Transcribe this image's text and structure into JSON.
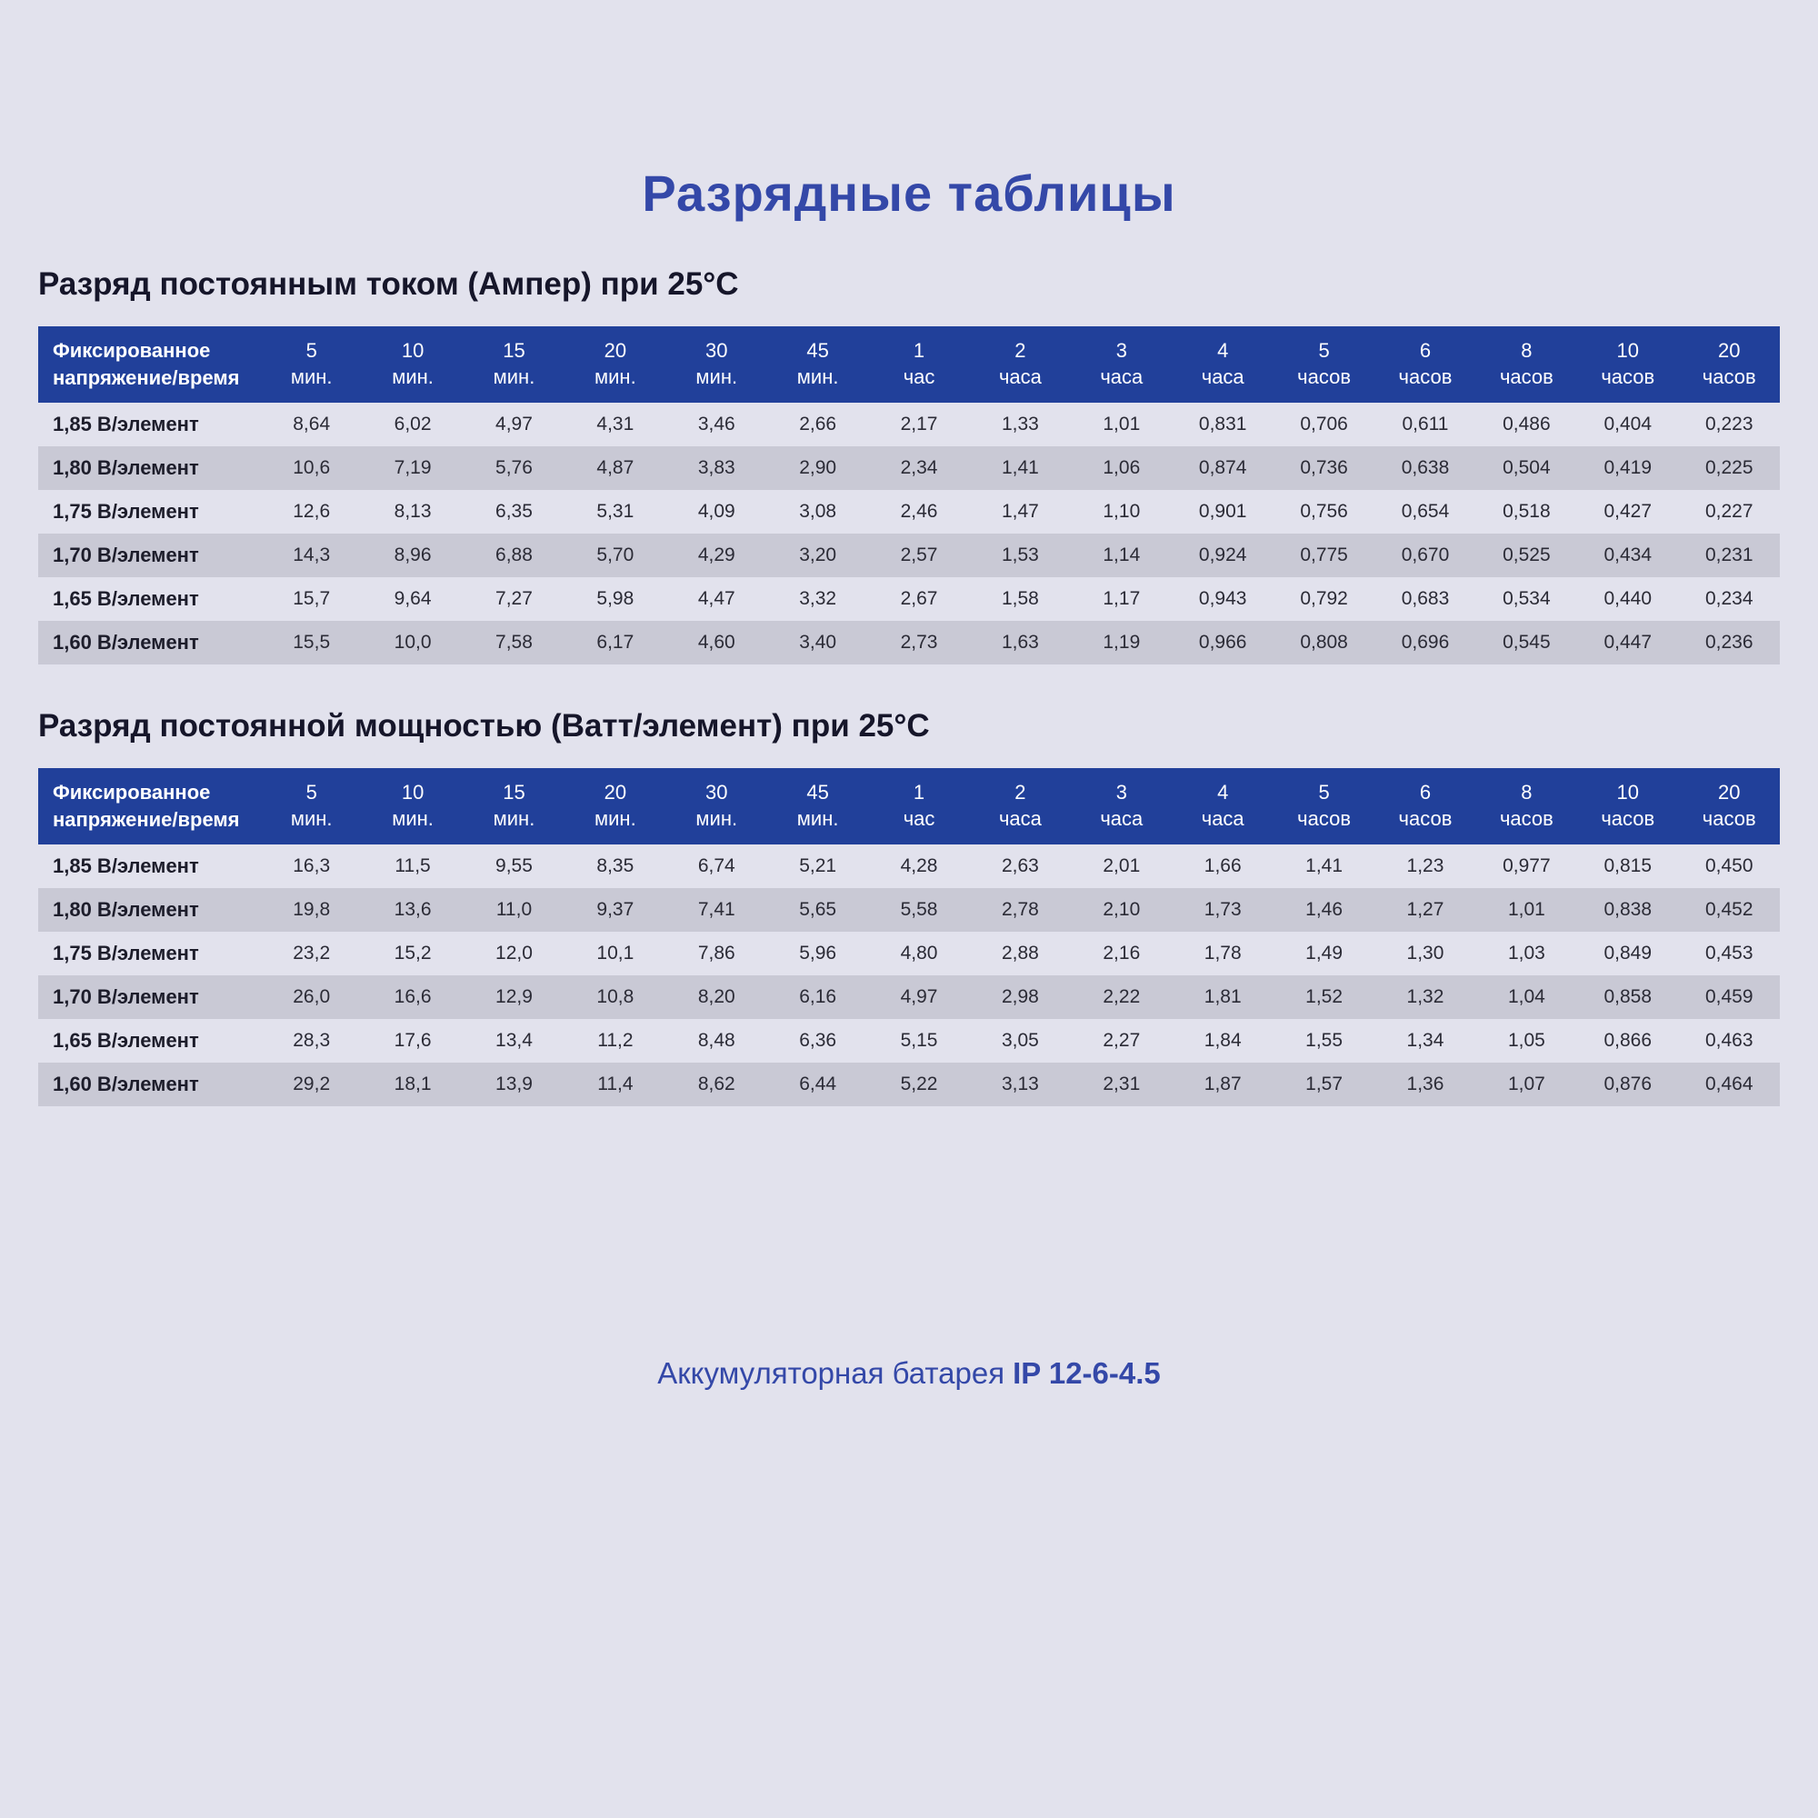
{
  "page": {
    "title": "Разрядные таблицы",
    "footer": {
      "text": "Аккумуляторная батарея",
      "model": "IP 12-6-4.5"
    }
  },
  "colors": {
    "background": "#e2e2ed",
    "accent_blue": "#3448a8",
    "header_navy": "#21409a",
    "stripe_gray": "#c9c9d5"
  },
  "corner_header": "Фиксированное напряжение/время",
  "columns": [
    {
      "value": "5",
      "unit": "мин."
    },
    {
      "value": "10",
      "unit": "мин."
    },
    {
      "value": "15",
      "unit": "мин."
    },
    {
      "value": "20",
      "unit": "мин."
    },
    {
      "value": "30",
      "unit": "мин."
    },
    {
      "value": "45",
      "unit": "мин."
    },
    {
      "value": "1",
      "unit": "час"
    },
    {
      "value": "2",
      "unit": "часа"
    },
    {
      "value": "3",
      "unit": "часа"
    },
    {
      "value": "4",
      "unit": "часа"
    },
    {
      "value": "5",
      "unit": "часов"
    },
    {
      "value": "6",
      "unit": "часов"
    },
    {
      "value": "8",
      "unit": "часов"
    },
    {
      "value": "10",
      "unit": "часов"
    },
    {
      "value": "20",
      "unit": "часов"
    }
  ],
  "tables": [
    {
      "heading": "Разряд постоянным током (Ампер) при 25°C",
      "rows": [
        {
          "label": "1,85 В/элемент",
          "values": [
            "8,64",
            "6,02",
            "4,97",
            "4,31",
            "3,46",
            "2,66",
            "2,17",
            "1,33",
            "1,01",
            "0,831",
            "0,706",
            "0,611",
            "0,486",
            "0,404",
            "0,223"
          ]
        },
        {
          "label": "1,80 В/элемент",
          "values": [
            "10,6",
            "7,19",
            "5,76",
            "4,87",
            "3,83",
            "2,90",
            "2,34",
            "1,41",
            "1,06",
            "0,874",
            "0,736",
            "0,638",
            "0,504",
            "0,419",
            "0,225"
          ]
        },
        {
          "label": "1,75 В/элемент",
          "values": [
            "12,6",
            "8,13",
            "6,35",
            "5,31",
            "4,09",
            "3,08",
            "2,46",
            "1,47",
            "1,10",
            "0,901",
            "0,756",
            "0,654",
            "0,518",
            "0,427",
            "0,227"
          ]
        },
        {
          "label": "1,70 В/элемент",
          "values": [
            "14,3",
            "8,96",
            "6,88",
            "5,70",
            "4,29",
            "3,20",
            "2,57",
            "1,53",
            "1,14",
            "0,924",
            "0,775",
            "0,670",
            "0,525",
            "0,434",
            "0,231"
          ]
        },
        {
          "label": "1,65 В/элемент",
          "values": [
            "15,7",
            "9,64",
            "7,27",
            "5,98",
            "4,47",
            "3,32",
            "2,67",
            "1,58",
            "1,17",
            "0,943",
            "0,792",
            "0,683",
            "0,534",
            "0,440",
            "0,234"
          ]
        },
        {
          "label": "1,60 В/элемент",
          "values": [
            "15,5",
            "10,0",
            "7,58",
            "6,17",
            "4,60",
            "3,40",
            "2,73",
            "1,63",
            "1,19",
            "0,966",
            "0,808",
            "0,696",
            "0,545",
            "0,447",
            "0,236"
          ]
        }
      ]
    },
    {
      "heading": "Разряд постоянной мощностью (Ватт/элемент) при 25°C",
      "rows": [
        {
          "label": "1,85 В/элемент",
          "values": [
            "16,3",
            "11,5",
            "9,55",
            "8,35",
            "6,74",
            "5,21",
            "4,28",
            "2,63",
            "2,01",
            "1,66",
            "1,41",
            "1,23",
            "0,977",
            "0,815",
            "0,450"
          ]
        },
        {
          "label": "1,80 В/элемент",
          "values": [
            "19,8",
            "13,6",
            "11,0",
            "9,37",
            "7,41",
            "5,65",
            "5,58",
            "2,78",
            "2,10",
            "1,73",
            "1,46",
            "1,27",
            "1,01",
            "0,838",
            "0,452"
          ]
        },
        {
          "label": "1,75 В/элемент",
          "values": [
            "23,2",
            "15,2",
            "12,0",
            "10,1",
            "7,86",
            "5,96",
            "4,80",
            "2,88",
            "2,16",
            "1,78",
            "1,49",
            "1,30",
            "1,03",
            "0,849",
            "0,453"
          ]
        },
        {
          "label": "1,70 В/элемент",
          "values": [
            "26,0",
            "16,6",
            "12,9",
            "10,8",
            "8,20",
            "6,16",
            "4,97",
            "2,98",
            "2,22",
            "1,81",
            "1,52",
            "1,32",
            "1,04",
            "0,858",
            "0,459"
          ]
        },
        {
          "label": "1,65 В/элемент",
          "values": [
            "28,3",
            "17,6",
            "13,4",
            "11,2",
            "8,48",
            "6,36",
            "5,15",
            "3,05",
            "2,27",
            "1,84",
            "1,55",
            "1,34",
            "1,05",
            "0,866",
            "0,463"
          ]
        },
        {
          "label": "1,60 В/элемент",
          "values": [
            "29,2",
            "18,1",
            "13,9",
            "11,4",
            "8,62",
            "6,44",
            "5,22",
            "3,13",
            "2,31",
            "1,87",
            "1,57",
            "1,36",
            "1,07",
            "0,876",
            "0,464"
          ]
        }
      ]
    }
  ]
}
